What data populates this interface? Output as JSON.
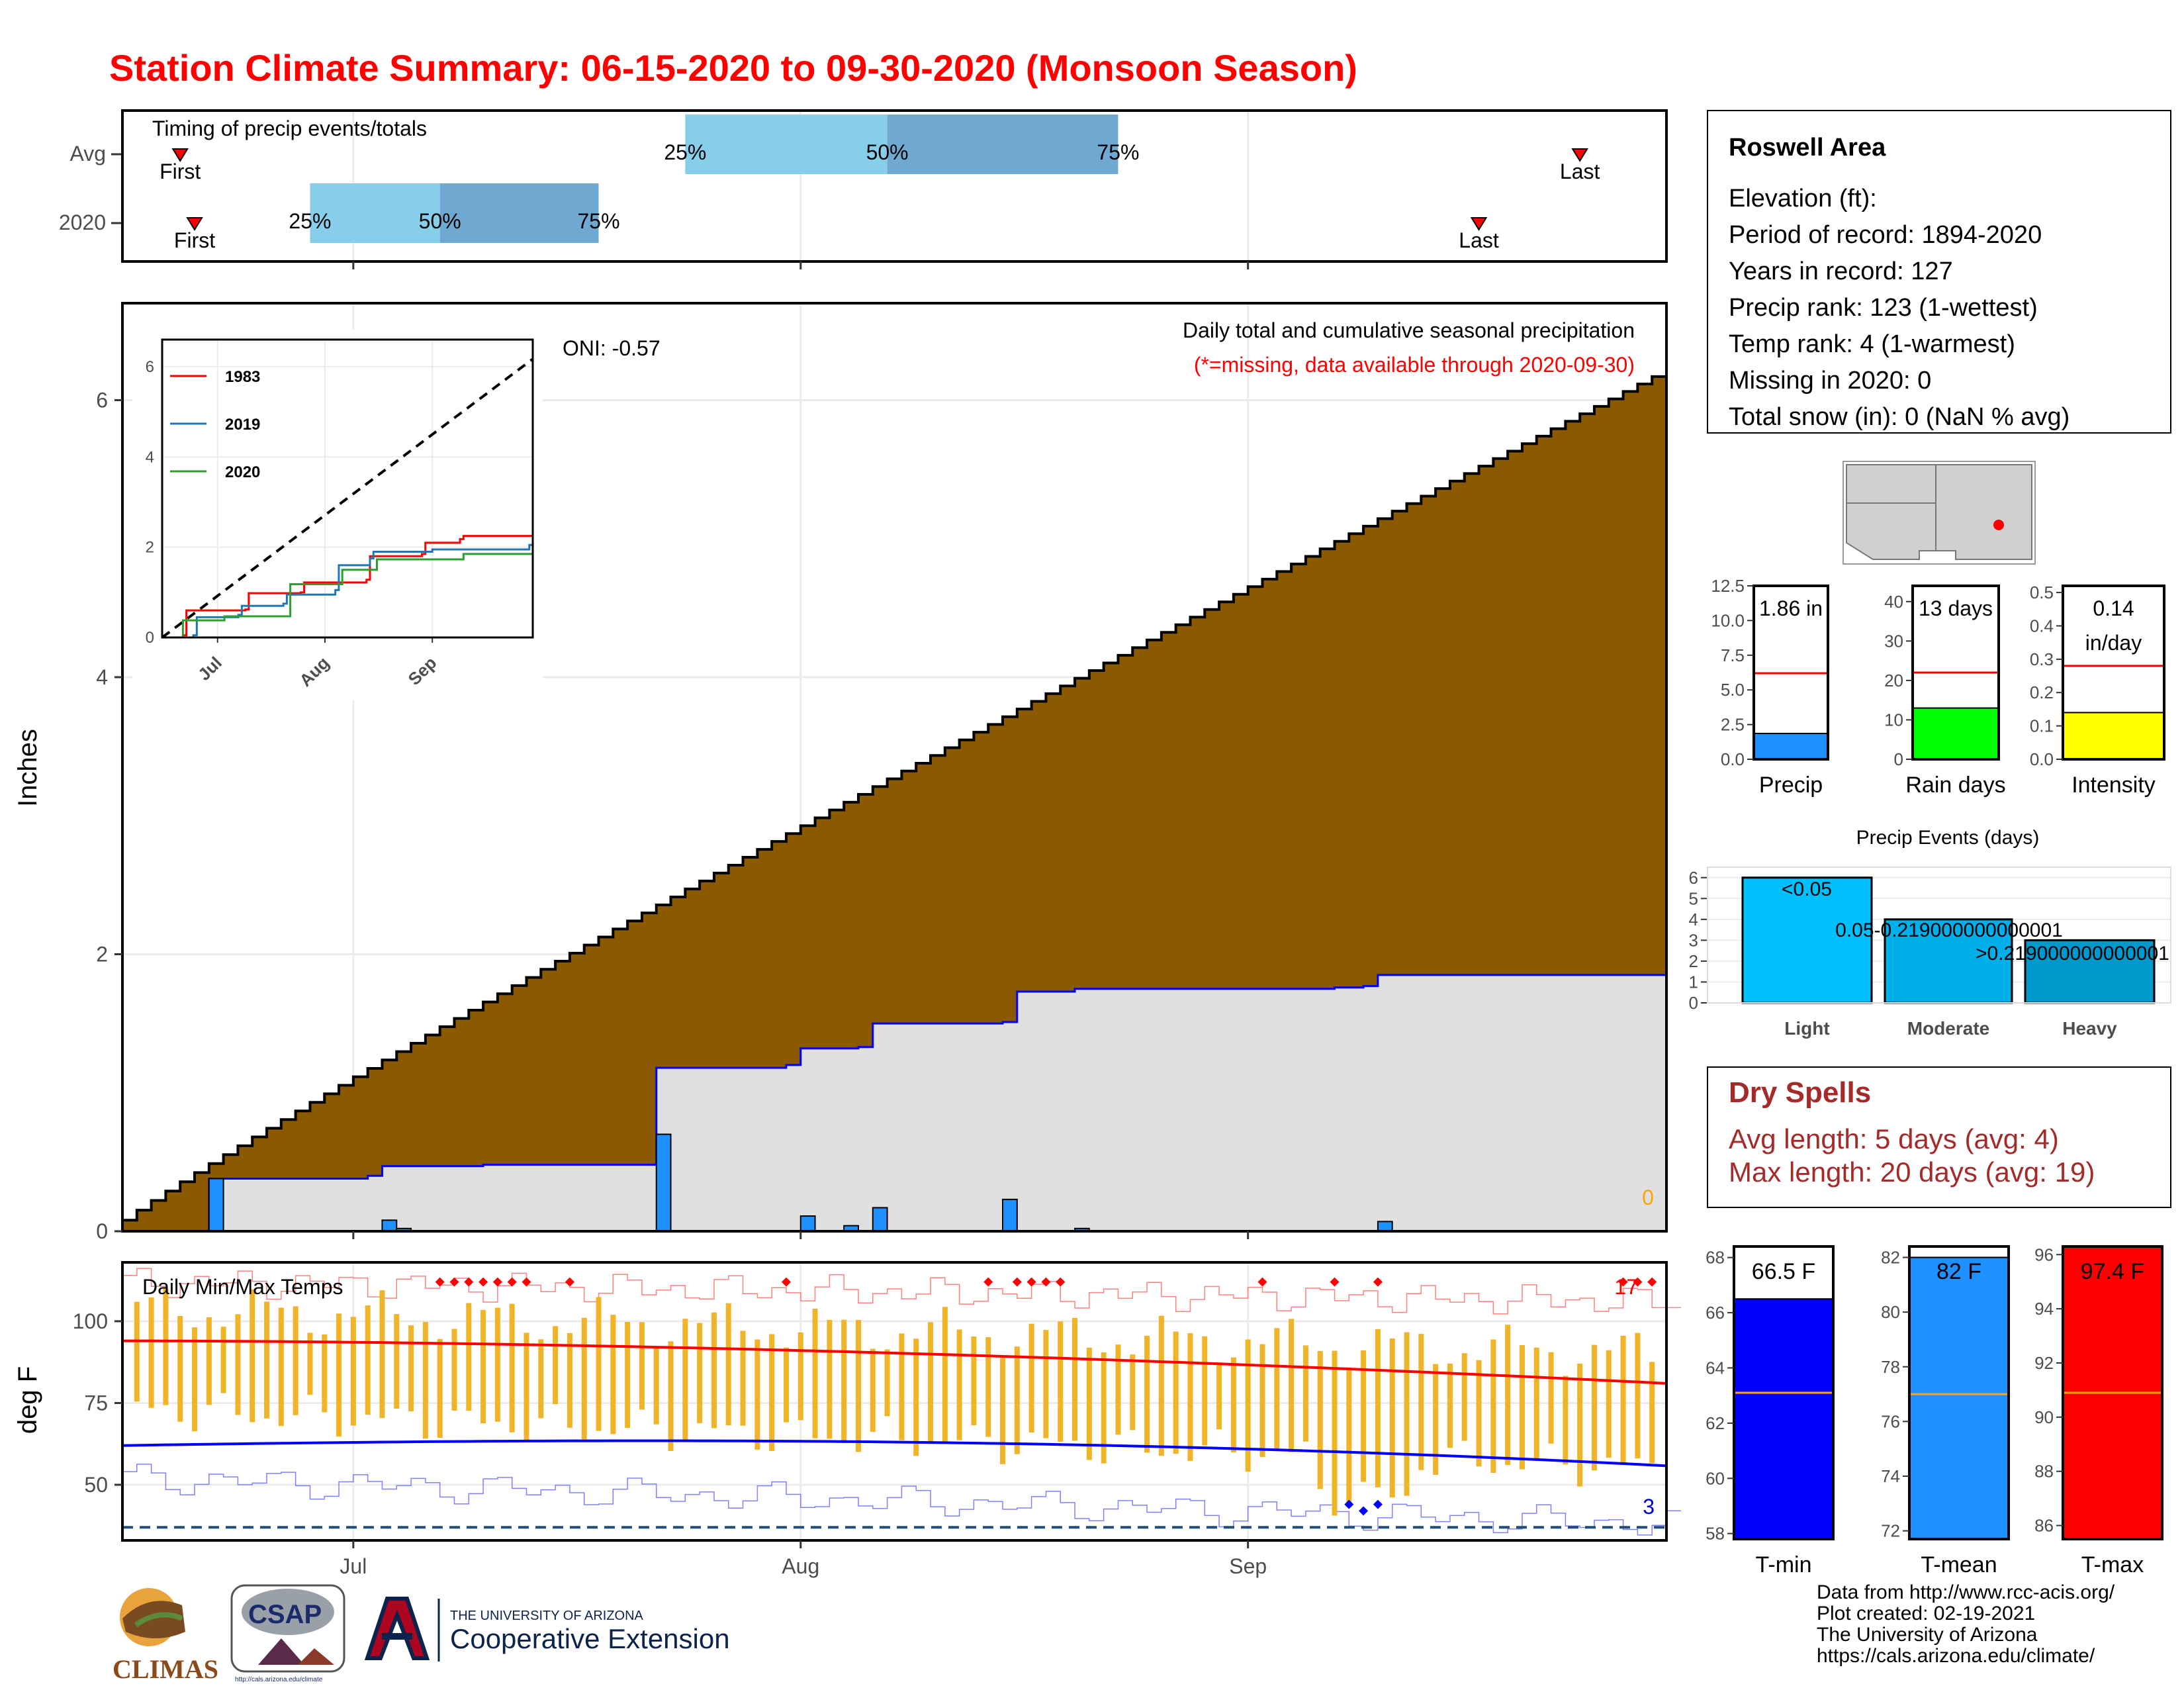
{
  "title": "Station Climate Summary: 06-15-2020 to 09-30-2020 (Monsoon Season)",
  "colors": {
    "title": "#ff0000",
    "cumulative_fill": "#8b5a00",
    "avg_cumulative_fill": "#e0e0e1",
    "daily_bar": "#1e90ff",
    "timing_light": "#87ceeb",
    "timing_dark": "#6fa8d0",
    "dry_spells": "#a52a2a",
    "tmin": "#0000ff",
    "tmean": "#1e90ff",
    "tmax": "#ff0000",
    "temp_bar": "#f0b429"
  },
  "station_info": {
    "name": "Roswell Area",
    "lines": [
      "Elevation (ft):",
      "Period of record: 1894-2020",
      "Years in record: 127",
      "Precip rank: 123 (1-wettest)",
      "Temp rank: 4 (1-warmest)",
      "Missing in 2020: 0",
      "Total snow (in): 0 (NaN % avg)"
    ]
  },
  "dry_spells": {
    "title": "Dry Spells",
    "avg_length": "Avg length: 5 days (avg: 4)",
    "max_length": "Max length: 20 days (avg: 19)"
  },
  "footer": [
    "Data from http://www.rcc-acis.org/",
    "Plot created: 02-19-2021",
    "The University of Arizona",
    "https://cals.arizona.edu/climate/"
  ],
  "logos": {
    "climas": "CLIMAS",
    "csap": "CSAP",
    "csap_url": "http://cals.arizona.edu/climate",
    "ua_small": "THE UNIVERSITY OF ARIZONA",
    "ua_big": "Cooperative Extension"
  },
  "chart_data": [
    {
      "id": "timing",
      "type": "bar",
      "title": "Timing of precip events/totals",
      "rows": [
        {
          "label": "Avg",
          "first": "06-19",
          "q25": "07-24",
          "q50": "08-07",
          "q75": "08-23",
          "last": "09-24"
        },
        {
          "label": "2020",
          "first": "06-20",
          "q25": "06-28",
          "q50": "07-07",
          "q75": "07-18",
          "last": "09-17"
        }
      ],
      "marker_labels": {
        "first": "First",
        "last": "Last",
        "q25": "25%",
        "q50": "50%",
        "q75": "75%"
      },
      "x_ticks": [
        "Jul",
        "Aug",
        "Sep"
      ]
    },
    {
      "id": "precip",
      "type": "area",
      "title": "Daily total and cumulative seasonal precipitation",
      "subtitle": "(*=missing, data available through 2020-09-30)",
      "oni": "ONI: -0.57",
      "ylabel": "Inches",
      "ylim": [
        0,
        6.7
      ],
      "yticks": [
        0,
        2,
        4,
        6
      ],
      "x_ticks": [
        "Jul",
        "Aug",
        "Sep"
      ],
      "corner_label": "0",
      "avg_cumulative_end": 6.17,
      "cumulative_2020": [
        {
          "date": "06-15",
          "value": 0.0
        },
        {
          "date": "06-21",
          "value": 0.38
        },
        {
          "date": "07-02",
          "value": 0.4
        },
        {
          "date": "07-03",
          "value": 0.47
        },
        {
          "date": "07-10",
          "value": 0.48
        },
        {
          "date": "07-21",
          "value": 0.48
        },
        {
          "date": "07-22",
          "value": 1.18
        },
        {
          "date": "07-31",
          "value": 1.2
        },
        {
          "date": "08-01",
          "value": 1.32
        },
        {
          "date": "08-05",
          "value": 1.33
        },
        {
          "date": "08-06",
          "value": 1.5
        },
        {
          "date": "08-15",
          "value": 1.51
        },
        {
          "date": "08-16",
          "value": 1.73
        },
        {
          "date": "08-20",
          "value": 1.75
        },
        {
          "date": "09-07",
          "value": 1.76
        },
        {
          "date": "09-09",
          "value": 1.77
        },
        {
          "date": "09-10",
          "value": 1.85
        },
        {
          "date": "09-30",
          "value": 1.85
        }
      ],
      "daily_2020": [
        {
          "date": "06-21",
          "value": 0.38
        },
        {
          "date": "07-03",
          "value": 0.08
        },
        {
          "date": "07-04",
          "value": 0.02
        },
        {
          "date": "07-22",
          "value": 0.7
        },
        {
          "date": "08-01",
          "value": 0.11
        },
        {
          "date": "08-04",
          "value": 0.04
        },
        {
          "date": "08-06",
          "value": 0.17
        },
        {
          "date": "08-15",
          "value": 0.23
        },
        {
          "date": "08-20",
          "value": 0.02
        },
        {
          "date": "09-10",
          "value": 0.07
        }
      ],
      "inset": {
        "type": "line",
        "ylim": [
          0,
          6
        ],
        "yticks": [
          0,
          2,
          4,
          6
        ],
        "x_ticks": [
          "Jul",
          "Aug",
          "Sep"
        ],
        "avg_end": 6.17,
        "series": [
          {
            "name": "1983",
            "color": "#ff0000",
            "points": [
              {
                "date": "06-15",
                "value": 0.0
              },
              {
                "date": "06-21",
                "value": 0.05
              },
              {
                "date": "06-22",
                "value": 0.6
              },
              {
                "date": "07-09",
                "value": 0.62
              },
              {
                "date": "07-10",
                "value": 0.98
              },
              {
                "date": "07-25",
                "value": 1.0
              },
              {
                "date": "07-26",
                "value": 1.22
              },
              {
                "date": "08-13",
                "value": 1.28
              },
              {
                "date": "08-14",
                "value": 1.8
              },
              {
                "date": "08-29",
                "value": 1.85
              },
              {
                "date": "08-30",
                "value": 2.1
              },
              {
                "date": "09-09",
                "value": 2.18
              },
              {
                "date": "09-10",
                "value": 2.25
              },
              {
                "date": "09-30",
                "value": 2.28
              }
            ]
          },
          {
            "name": "2019",
            "color": "#1f77b4",
            "points": [
              {
                "date": "06-15",
                "value": 0.0
              },
              {
                "date": "06-24",
                "value": 0.05
              },
              {
                "date": "06-25",
                "value": 0.45
              },
              {
                "date": "07-07",
                "value": 0.5
              },
              {
                "date": "07-08",
                "value": 0.7
              },
              {
                "date": "07-20",
                "value": 0.75
              },
              {
                "date": "07-21",
                "value": 0.95
              },
              {
                "date": "08-04",
                "value": 1.05
              },
              {
                "date": "08-05",
                "value": 1.6
              },
              {
                "date": "08-14",
                "value": 1.75
              },
              {
                "date": "08-15",
                "value": 1.9
              },
              {
                "date": "09-01",
                "value": 1.95
              },
              {
                "date": "09-29",
                "value": 2.05
              },
              {
                "date": "09-30",
                "value": 3.1
              }
            ]
          },
          {
            "name": "2020",
            "color": "#2ca02c",
            "points": [
              {
                "date": "06-15",
                "value": 0.0
              },
              {
                "date": "06-21",
                "value": 0.38
              },
              {
                "date": "07-03",
                "value": 0.47
              },
              {
                "date": "07-22",
                "value": 1.18
              },
              {
                "date": "08-06",
                "value": 1.5
              },
              {
                "date": "08-16",
                "value": 1.73
              },
              {
                "date": "09-10",
                "value": 1.85
              },
              {
                "date": "09-30",
                "value": 1.85
              }
            ]
          }
        ]
      }
    },
    {
      "id": "temps",
      "type": "bar",
      "title": "Daily Min/Max Temps",
      "ylabel": "deg F",
      "ylim": [
        33,
        118
      ],
      "yticks": [
        50,
        75,
        100
      ],
      "x_ticks": [
        "Jul",
        "Aug",
        "Sep"
      ],
      "label_high_count": "17",
      "label_low_count": "3",
      "normal_max": {
        "start": 94,
        "end": 81
      },
      "normal_min": {
        "start": 62,
        "end": 52
      },
      "record_low_line": 37
    },
    {
      "id": "mini_bars",
      "type": "bar",
      "panels": [
        {
          "label": "Precip",
          "value": 1.86,
          "avg": 6.2,
          "ylim": [
            0,
            12.5
          ],
          "yticks": [
            "0.0",
            "2.5",
            "5.0",
            "7.5",
            "10.0",
            "12.5"
          ],
          "value_label": "1.86 in",
          "color": "#1e90ff"
        },
        {
          "label": "Rain days",
          "value": 13,
          "avg": 22,
          "ylim": [
            0,
            44
          ],
          "yticks": [
            "0",
            "10",
            "20",
            "30",
            "40"
          ],
          "value_label": "13 days",
          "color": "#00ff00"
        },
        {
          "label": "Intensity",
          "value": 0.14,
          "avg": 0.28,
          "ylim": [
            0,
            0.52
          ],
          "yticks": [
            "0.0",
            "0.1",
            "0.2",
            "0.3",
            "0.4",
            "0.5"
          ],
          "value_label": "0.14\nin/day",
          "color": "#ffff00"
        }
      ]
    },
    {
      "id": "precip_events",
      "type": "bar",
      "title": "Precip Events (days)",
      "categories": [
        "Light",
        "Moderate",
        "Heavy"
      ],
      "values": [
        6,
        4,
        3
      ],
      "bar_labels": [
        "<0.05",
        "0.05-0.219000000000001",
        ">0.219000000000001"
      ],
      "ylim": [
        0,
        6.5
      ],
      "yticks": [
        0,
        1,
        2,
        3,
        4,
        5,
        6
      ]
    },
    {
      "id": "temp_summary",
      "type": "bar",
      "panels": [
        {
          "label": "T-min",
          "value": 66.5,
          "avg": 63.1,
          "ylim": [
            57.8,
            68.4
          ],
          "yticks": [
            58,
            60,
            62,
            64,
            66,
            68
          ],
          "value_label": "66.5 F",
          "color": "#0000ff"
        },
        {
          "label": "T-mean",
          "value": 82.0,
          "avg": 77.0,
          "ylim": [
            71.7,
            82.4
          ],
          "yticks": [
            72,
            74,
            76,
            78,
            80,
            82
          ],
          "value_label": "82 F",
          "color": "#1e90ff"
        },
        {
          "label": "T-max",
          "value": 97.4,
          "avg": 90.9,
          "ylim": [
            85.5,
            96.3
          ],
          "yticks": [
            86,
            88,
            90,
            92,
            94,
            96
          ],
          "value_label": "97.4 F",
          "color": "#ff0000"
        }
      ]
    }
  ]
}
